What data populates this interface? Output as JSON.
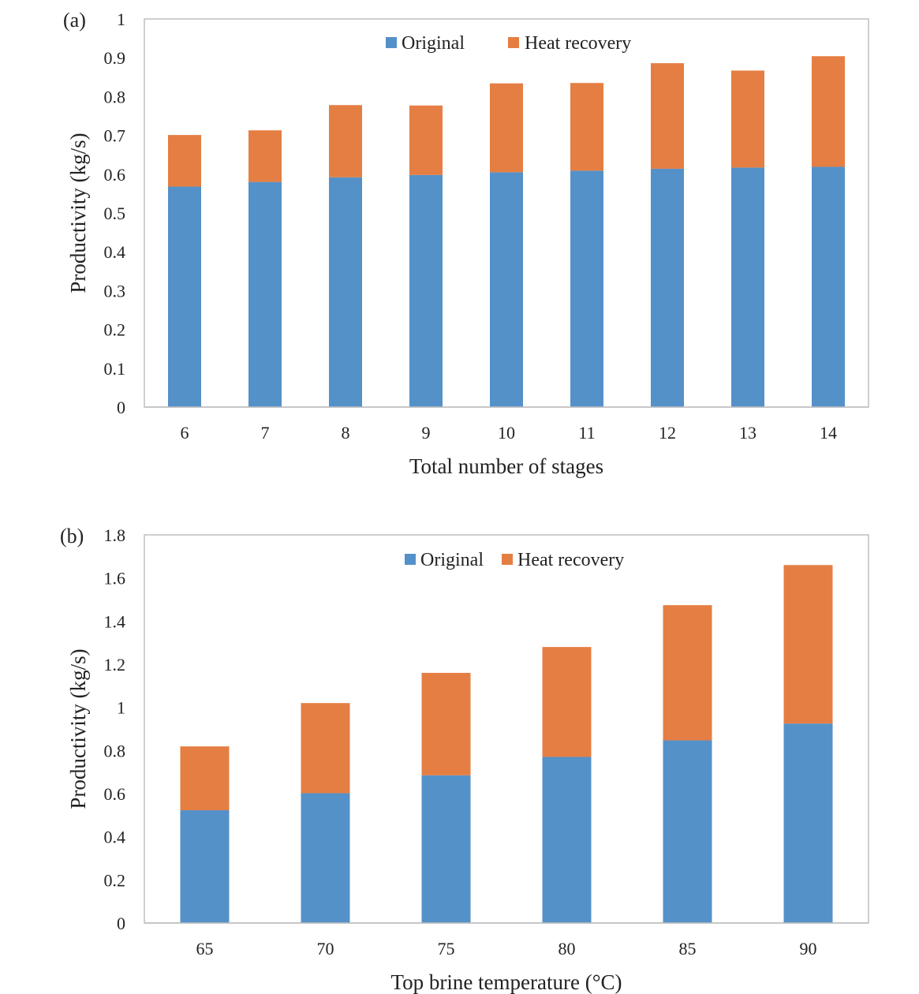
{
  "chart_data": [
    {
      "type": "bar",
      "stacked": true,
      "panel_label": "(a)",
      "xlabel": "Total number of stages",
      "ylabel": "Productivity (kg/s)",
      "ylim": [
        0,
        1
      ],
      "yticks": [
        0,
        0.1,
        0.2,
        0.3,
        0.4,
        0.5,
        0.6,
        0.7,
        0.8,
        0.9,
        1
      ],
      "ytick_labels": [
        "0",
        "0.1",
        "0.2",
        "0.3",
        "0.4",
        "0.5",
        "0.6",
        "0.7",
        "0.8",
        "0.9",
        "1"
      ],
      "categories": [
        "6",
        "7",
        "8",
        "9",
        "10",
        "11",
        "12",
        "13",
        "14"
      ],
      "series": [
        {
          "name": "Original",
          "color": "#5491C9",
          "values": [
            0.568,
            0.58,
            0.592,
            0.598,
            0.605,
            0.609,
            0.614,
            0.617,
            0.619
          ]
        },
        {
          "name": "Heat recovery",
          "color": "#E57E43",
          "values": [
            0.133,
            0.133,
            0.186,
            0.179,
            0.229,
            0.226,
            0.272,
            0.25,
            0.285
          ]
        }
      ],
      "legend": "top-center",
      "grid": false
    },
    {
      "type": "bar",
      "stacked": true,
      "panel_label": "(b)",
      "xlabel": "Top brine temperature (°C)",
      "ylabel": "Productivity (kg/s)",
      "ylim": [
        0,
        1.8
      ],
      "yticks": [
        0,
        0.2,
        0.4,
        0.6,
        0.8,
        1,
        1.2,
        1.4,
        1.6,
        1.8
      ],
      "ytick_labels": [
        "0",
        "0.2",
        "0.4",
        "0.6",
        "0.8",
        "1",
        "1.2",
        "1.4",
        "1.6",
        "1.8"
      ],
      "categories": [
        "65",
        "70",
        "75",
        "80",
        "85",
        "90"
      ],
      "series": [
        {
          "name": "Original",
          "color": "#5491C9",
          "values": [
            0.523,
            0.602,
            0.685,
            0.77,
            0.847,
            0.925
          ]
        },
        {
          "name": "Heat recovery",
          "color": "#E57E43",
          "values": [
            0.296,
            0.418,
            0.475,
            0.51,
            0.627,
            0.735
          ]
        }
      ],
      "legend": "top-center",
      "grid": false
    }
  ]
}
